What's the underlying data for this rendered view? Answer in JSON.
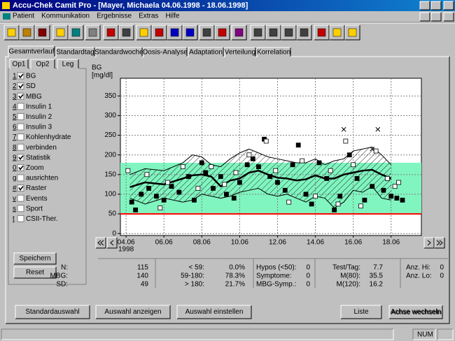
{
  "window": {
    "title": "Accu-Chek Camit Pro - [Mayer, Michaela 04.06.1998 - 18.06.1998]"
  },
  "menu": [
    "Patient",
    "Kommunikation",
    "Ergebnisse",
    "Extras",
    "Hilfe"
  ],
  "tabs": [
    "Gesamtverlauf",
    "Standardtag",
    "Standardwoche",
    "Dosis-Analyse",
    "Adaptation",
    "Verteilung",
    "Korrelation"
  ],
  "subtabs": [
    "Op1",
    "Op2",
    "Leg"
  ],
  "options": [
    {
      "key": "1",
      "label": "BG",
      "checked": true
    },
    {
      "key": "2",
      "label": "SD",
      "checked": true
    },
    {
      "key": "3",
      "label": "MBG",
      "checked": true
    },
    {
      "key": "4",
      "label": "Insulin 1",
      "checked": false
    },
    {
      "key": "5",
      "label": "Insulin 2",
      "checked": false
    },
    {
      "key": "6",
      "label": "Insulin 3",
      "checked": false
    },
    {
      "key": "7",
      "label": "Kohlenhydrate",
      "checked": false
    },
    {
      "key": "8",
      "label": "verbinden",
      "checked": false
    },
    {
      "key": "9",
      "label": "Statistik",
      "checked": true
    },
    {
      "key": "0",
      "label": "Zoom",
      "checked": true
    },
    {
      "key": "g",
      "label": "ausrichten",
      "checked": false
    },
    {
      "key": "#",
      "label": "Raster",
      "checked": true
    },
    {
      "key": "v",
      "label": "Events",
      "checked": false
    },
    {
      "key": "s",
      "label": "Sport",
      "checked": false
    },
    {
      "key": "t",
      "label": "CSII-Ther.",
      "checked": false
    }
  ],
  "buttons": {
    "save": "Speichern",
    "reset": "Reset",
    "standard": "Standardauswahl",
    "show": "Auswahl anzeigen",
    "set": "Auswahl einstellen",
    "list": "Liste",
    "axis": "Achse wechseln"
  },
  "stats": [
    [
      [
        "N:",
        115
      ],
      [
        "MBG:",
        140
      ],
      [
        "SD:",
        49
      ]
    ],
    [
      [
        "< 59:",
        "0.0%"
      ],
      [
        "59-180:",
        "78.3%"
      ],
      [
        "> 180:",
        "21.7%"
      ]
    ],
    [
      [
        "Hypos (<50):",
        0
      ],
      [
        "Symptome:",
        0
      ],
      [
        "MBG-Symp.:",
        0
      ]
    ],
    [
      [
        "Test/Tag:",
        7.7
      ],
      [
        "M(80):",
        35.5
      ],
      [
        "M(120):",
        16.2
      ]
    ],
    [
      [
        "Anz. Hi:",
        0
      ],
      [
        "Anz. Lo:",
        0
      ]
    ]
  ],
  "status": "NUM",
  "chart_data": {
    "type": "line",
    "y_label": "BG",
    "y_unit": "[mg/dl]",
    "ylim": [
      -5,
      395
    ],
    "yticks": [
      0,
      50,
      100,
      150,
      200,
      250,
      300,
      350
    ],
    "xlim": [
      3.7,
      19.6
    ],
    "xticks": [
      {
        "value": 4,
        "label": "04.06"
      },
      {
        "value": 6,
        "label": "06.06"
      },
      {
        "value": 8,
        "label": "08.06"
      },
      {
        "value": 10,
        "label": "10.06"
      },
      {
        "value": 12,
        "label": "12.06"
      },
      {
        "value": 14,
        "label": "14.06"
      },
      {
        "value": 16,
        "label": "16.06"
      },
      {
        "value": 18,
        "label": "18.06"
      }
    ],
    "x_year": "1998",
    "grid": true,
    "target_range": [
      50,
      180
    ],
    "target_color": "#80f5c0",
    "hypo_line": 50,
    "hypo_color": "#ff0000",
    "x": [
      4.2,
      5,
      6,
      7,
      7.5,
      8,
      8.5,
      9,
      9.5,
      10,
      10.5,
      11,
      11.5,
      12,
      12.5,
      13,
      13.5,
      14,
      14.5,
      15,
      15.5,
      16,
      16.5,
      17,
      17.5,
      18
    ],
    "median": {
      "color": "#000000",
      "values": [
        118,
        130,
        125,
        140,
        148,
        150,
        145,
        120,
        135,
        140,
        155,
        160,
        150,
        142,
        140,
        135,
        138,
        148,
        140,
        140,
        150,
        155,
        160,
        162,
        150,
        140
      ]
    },
    "upper": {
      "color": "#000000",
      "values": [
        150,
        165,
        160,
        180,
        200,
        195,
        175,
        170,
        190,
        205,
        215,
        205,
        195,
        190,
        185,
        180,
        180,
        190,
        175,
        185,
        190,
        210,
        215,
        220,
        200,
        175
      ]
    },
    "lower": {
      "color": "#000000",
      "values": [
        90,
        75,
        90,
        80,
        85,
        100,
        95,
        90,
        95,
        105,
        110,
        115,
        100,
        95,
        100,
        90,
        80,
        95,
        90,
        65,
        80,
        110,
        105,
        120,
        90,
        85
      ]
    },
    "points": [
      {
        "marker": "filled",
        "color": "#000000",
        "x": [
          4.3,
          4.5,
          4.8,
          5.2,
          5.6,
          6,
          6.4,
          6.8,
          7.3,
          7.6,
          8,
          8.2,
          8.6,
          9,
          9.3,
          9.7,
          10,
          10.4,
          10.7,
          11,
          11.3,
          11.6,
          12,
          12.4,
          12.8,
          13.1,
          13.5,
          13.8,
          14.2,
          14.6,
          15,
          15.3,
          15.8,
          16.2,
          16.6,
          17,
          17.6,
          18,
          18.3,
          18.6
        ],
        "values": [
          80,
          60,
          100,
          115,
          95,
          85,
          120,
          105,
          145,
          85,
          180,
          155,
          115,
          145,
          100,
          90,
          130,
          175,
          190,
          170,
          240,
          145,
          130,
          110,
          175,
          225,
          100,
          75,
          180,
          140,
          60,
          95,
          200,
          140,
          85,
          120,
          110,
          95,
          90,
          85
        ]
      },
      {
        "marker": "open",
        "color": "#000000",
        "x": [
          4.1,
          5.1,
          5.8,
          6.2,
          7,
          7.8,
          8.5,
          9.2,
          9.8,
          10.5,
          11.4,
          11.9,
          12.6,
          13.3,
          14,
          14.8,
          15.2,
          15.6,
          16,
          16.4,
          17.2,
          17.8,
          18.2,
          18.4
        ],
        "values": [
          160,
          150,
          65,
          130,
          170,
          115,
          170,
          125,
          155,
          200,
          235,
          160,
          80,
          185,
          95,
          160,
          75,
          235,
          175,
          70,
          210,
          140,
          120,
          130
        ]
      },
      {
        "marker": "cross",
        "color": "#000000",
        "x": [
          15.5,
          17,
          17.3
        ],
        "values": [
          265,
          215,
          265
        ]
      }
    ]
  }
}
